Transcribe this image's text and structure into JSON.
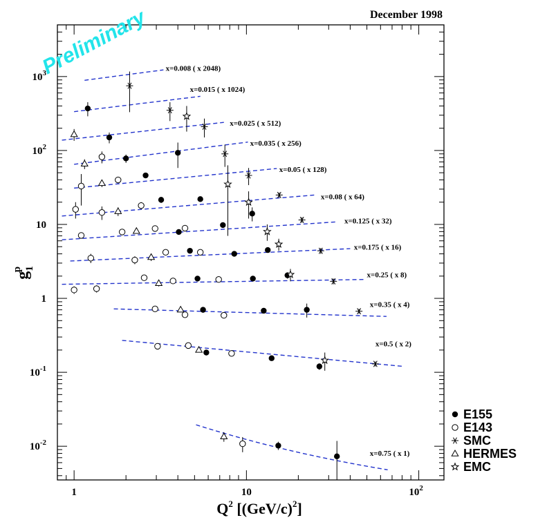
{
  "chart_data": {
    "type": "scatter",
    "title": "December 1998",
    "watermark": "Preliminary",
    "xlabel": "Q",
    "xlabel_sup": "2",
    "xlabel_unit": " [(GeV/c)",
    "xlabel_unit_sup": "2",
    "xlabel_close": "]",
    "ylabel": "g",
    "ylabel_sub": "1",
    "ylabel_sup": "p",
    "xscale": "log",
    "yscale": "log",
    "xlim": [
      0.8,
      140
    ],
    "ylim": [
      0.0035,
      5000
    ],
    "grid": false,
    "legend_position": "bottom-right",
    "x_ticks": [
      {
        "value": 1,
        "label": "1",
        "sup": ""
      },
      {
        "value": 10,
        "label": "10",
        "sup": ""
      },
      {
        "value": 100,
        "label": "10",
        "sup": "2"
      }
    ],
    "y_ticks": [
      {
        "value": 0.01,
        "label": "10",
        "sup": "-2"
      },
      {
        "value": 0.1,
        "label": "10",
        "sup": "-1"
      },
      {
        "value": 1,
        "label": "1",
        "sup": ""
      },
      {
        "value": 10,
        "label": "10",
        "sup": ""
      },
      {
        "value": 100,
        "label": "10",
        "sup": "2"
      },
      {
        "value": 1000,
        "label": "10",
        "sup": "3"
      }
    ],
    "legend": [
      {
        "experiment": "E155",
        "label": "E155"
      },
      {
        "experiment": "E143",
        "label": "E143"
      },
      {
        "experiment": "SMC",
        "label": "SMC"
      },
      {
        "experiment": "HERMES",
        "label": "HERMES"
      },
      {
        "experiment": "EMC",
        "label": "EMC"
      }
    ],
    "bins": [
      {
        "label": "x=0.008 ( x 2048)",
        "label_at": [
          3.4,
          1300
        ],
        "fit": [
          [
            1.15,
            890
          ],
          [
            3.3,
            1230
          ]
        ],
        "points": [
          {
            "experiment": "SMC",
            "x": 2.1,
            "y": 750,
            "err": 420
          }
        ]
      },
      {
        "label": "x=0.015 ( x 1024)",
        "label_at": [
          4.7,
          680
        ],
        "fit": [
          [
            1.0,
            335
          ],
          [
            5.4,
            540
          ]
        ],
        "points": [
          {
            "experiment": "E155",
            "x": 1.2,
            "y": 370,
            "err": 80
          },
          {
            "experiment": "SMC",
            "x": 3.6,
            "y": 350,
            "err": 100
          },
          {
            "experiment": "EMC",
            "x": 4.5,
            "y": 290,
            "err": 110
          }
        ]
      },
      {
        "label": "x=0.025 ( x 512)",
        "label_at": [
          8.0,
          235
        ],
        "fit": [
          [
            0.85,
            138
          ],
          [
            7.4,
            240
          ]
        ],
        "points": [
          {
            "experiment": "HERMES",
            "x": 1.0,
            "y": 165,
            "err": 30
          },
          {
            "experiment": "E155",
            "x": 1.6,
            "y": 150,
            "err": 25
          },
          {
            "experiment": "SMC",
            "x": 5.7,
            "y": 210,
            "err": 60
          }
        ]
      },
      {
        "label": "x=0.035 ( x 256)",
        "label_at": [
          10.5,
          126
        ],
        "fit": [
          [
            1.0,
            65
          ],
          [
            10.2,
            130
          ]
        ],
        "points": [
          {
            "experiment": "HERMES",
            "x": 1.15,
            "y": 66,
            "err": 10
          },
          {
            "experiment": "E143",
            "x": 1.45,
            "y": 82,
            "err": 15
          },
          {
            "experiment": "E155",
            "x": 2.0,
            "y": 78,
            "err": 10
          },
          {
            "experiment": "E155",
            "x": 4.0,
            "y": 93,
            "err": 35
          },
          {
            "experiment": "SMC",
            "x": 7.5,
            "y": 90,
            "err": 30
          }
        ]
      },
      {
        "label": "x=0.05 ( x 128)",
        "label_at": [
          15.5,
          56
        ],
        "fit": [
          [
            1.0,
            31
          ],
          [
            15.0,
            57
          ]
        ],
        "points": [
          {
            "experiment": "E143",
            "x": 1.1,
            "y": 33,
            "err": 15
          },
          {
            "experiment": "HERMES",
            "x": 1.45,
            "y": 36,
            "err": 4
          },
          {
            "experiment": "E143",
            "x": 1.8,
            "y": 40,
            "err": 4
          },
          {
            "experiment": "E155",
            "x": 2.6,
            "y": 46,
            "err": 3
          },
          {
            "experiment": "EMC",
            "x": 7.8,
            "y": 35,
            "err": 28
          },
          {
            "experiment": "SMC",
            "x": 10.3,
            "y": 46,
            "err": 12
          }
        ]
      },
      {
        "label": "x=0.08 ( x 64)",
        "label_at": [
          27.0,
          24
        ],
        "fit": [
          [
            0.85,
            13
          ],
          [
            25.0,
            25
          ]
        ],
        "points": [
          {
            "experiment": "E143",
            "x": 1.02,
            "y": 16,
            "err": 4
          },
          {
            "experiment": "E143",
            "x": 1.45,
            "y": 14.5,
            "err": 3
          },
          {
            "experiment": "HERMES",
            "x": 1.8,
            "y": 15,
            "err": 2
          },
          {
            "experiment": "E143",
            "x": 2.45,
            "y": 18,
            "err": 2
          },
          {
            "experiment": "E155",
            "x": 3.2,
            "y": 21.5,
            "err": 2
          },
          {
            "experiment": "E155",
            "x": 5.4,
            "y": 22,
            "err": 1.5
          },
          {
            "experiment": "EMC",
            "x": 10.3,
            "y": 20,
            "err": 8
          },
          {
            "experiment": "E155",
            "x": 10.8,
            "y": 14,
            "err": 3
          },
          {
            "experiment": "SMC",
            "x": 15.5,
            "y": 25,
            "err": 2
          }
        ]
      },
      {
        "label": "x=0.125 ( x 32)",
        "label_at": [
          37.0,
          11.2
        ],
        "fit": [
          [
            0.85,
            6.2
          ],
          [
            33.0,
            10.8
          ]
        ],
        "points": [
          {
            "experiment": "E143",
            "x": 1.1,
            "y": 7.1,
            "err": 0.6
          },
          {
            "experiment": "E143",
            "x": 1.9,
            "y": 7.9,
            "err": 0.6
          },
          {
            "experiment": "HERMES",
            "x": 2.3,
            "y": 8.1,
            "err": 0.6
          },
          {
            "experiment": "E143",
            "x": 2.95,
            "y": 8.8,
            "err": 0.6
          },
          {
            "experiment": "E155",
            "x": 4.05,
            "y": 7.9,
            "err": 0.6
          },
          {
            "experiment": "E143",
            "x": 4.4,
            "y": 8.9,
            "err": 0.6
          },
          {
            "experiment": "E155",
            "x": 7.3,
            "y": 9.8,
            "err": 0.6
          },
          {
            "experiment": "EMC",
            "x": 13.2,
            "y": 8.0,
            "err": 2.0
          },
          {
            "experiment": "SMC",
            "x": 21.0,
            "y": 11.5,
            "err": 1.0
          }
        ]
      },
      {
        "label": "x=0.175 ( x 16)",
        "label_at": [
          42.0,
          4.95
        ],
        "fit": [
          [
            0.95,
            3.2
          ],
          [
            40.0,
            4.7
          ]
        ],
        "points": [
          {
            "experiment": "E143",
            "x": 1.25,
            "y": 3.5,
            "err": 0.5
          },
          {
            "experiment": "E143",
            "x": 2.25,
            "y": 3.3,
            "err": 0.4
          },
          {
            "experiment": "HERMES",
            "x": 2.8,
            "y": 3.6,
            "err": 0.4
          },
          {
            "experiment": "E143",
            "x": 3.4,
            "y": 4.2,
            "err": 0.3
          },
          {
            "experiment": "E155",
            "x": 4.7,
            "y": 4.4,
            "err": 0.3
          },
          {
            "experiment": "E143",
            "x": 5.4,
            "y": 4.2,
            "err": 0.3
          },
          {
            "experiment": "E155",
            "x": 8.5,
            "y": 4.0,
            "err": 0.3
          },
          {
            "experiment": "E155",
            "x": 13.3,
            "y": 4.5,
            "err": 0.3
          },
          {
            "experiment": "EMC",
            "x": 15.4,
            "y": 5.4,
            "err": 1.0
          },
          {
            "experiment": "SMC",
            "x": 27.0,
            "y": 4.4,
            "err": 0.4
          }
        ]
      },
      {
        "label": "x=0.25 ( x 8)",
        "label_at": [
          50.0,
          2.1
        ],
        "fit": [
          [
            0.85,
            1.55
          ],
          [
            48.0,
            1.8
          ]
        ],
        "points": [
          {
            "experiment": "E143",
            "x": 1.0,
            "y": 1.3,
            "err": 0.15
          },
          {
            "experiment": "E143",
            "x": 1.35,
            "y": 1.35,
            "err": 0.15
          },
          {
            "experiment": "E143",
            "x": 2.55,
            "y": 1.9,
            "err": 0.15
          },
          {
            "experiment": "HERMES",
            "x": 3.1,
            "y": 1.6,
            "err": 0.15
          },
          {
            "experiment": "E143",
            "x": 3.75,
            "y": 1.72,
            "err": 0.12
          },
          {
            "experiment": "E155",
            "x": 5.2,
            "y": 1.85,
            "err": 0.1
          },
          {
            "experiment": "E143",
            "x": 6.9,
            "y": 1.8,
            "err": 0.1
          },
          {
            "experiment": "E155",
            "x": 10.9,
            "y": 1.85,
            "err": 0.1
          },
          {
            "experiment": "E155",
            "x": 17.3,
            "y": 2.05,
            "err": 0.2
          },
          {
            "experiment": "EMC",
            "x": 18.0,
            "y": 2.1,
            "err": 0.4
          },
          {
            "experiment": "SMC",
            "x": 32.0,
            "y": 1.7,
            "err": 0.15
          }
        ]
      },
      {
        "label": "x=0.35 ( x 4)",
        "label_at": [
          52.0,
          0.83
        ],
        "fit": [
          [
            1.7,
            0.72
          ],
          [
            65.0,
            0.57
          ]
        ],
        "points": [
          {
            "experiment": "E143",
            "x": 2.95,
            "y": 0.72,
            "err": 0.05
          },
          {
            "experiment": "HERMES",
            "x": 4.15,
            "y": 0.7,
            "err": 0.05
          },
          {
            "experiment": "E143",
            "x": 4.4,
            "y": 0.6,
            "err": 0.05
          },
          {
            "experiment": "E155",
            "x": 5.6,
            "y": 0.7,
            "err": 0.06
          },
          {
            "experiment": "E143",
            "x": 7.4,
            "y": 0.59,
            "err": 0.04
          },
          {
            "experiment": "E155",
            "x": 12.6,
            "y": 0.68,
            "err": 0.04
          },
          {
            "experiment": "E155",
            "x": 22.4,
            "y": 0.7,
            "err": 0.15
          },
          {
            "experiment": "SMC",
            "x": 45.0,
            "y": 0.67,
            "err": 0.05
          }
        ]
      },
      {
        "label": "x=0.5 ( x 2)",
        "label_at": [
          56.0,
          0.245
        ],
        "fit": [
          [
            1.9,
            0.27
          ],
          [
            82.0,
            0.12
          ]
        ],
        "points": [
          {
            "experiment": "E143",
            "x": 3.05,
            "y": 0.225,
            "err": 0.015
          },
          {
            "experiment": "E143",
            "x": 4.6,
            "y": 0.23,
            "err": 0.015
          },
          {
            "experiment": "HERMES",
            "x": 5.3,
            "y": 0.2,
            "err": 0.015
          },
          {
            "experiment": "E155",
            "x": 5.85,
            "y": 0.185,
            "err": 0.015
          },
          {
            "experiment": "E143",
            "x": 8.2,
            "y": 0.18,
            "err": 0.015
          },
          {
            "experiment": "E155",
            "x": 14.0,
            "y": 0.155,
            "err": 0.012
          },
          {
            "experiment": "E155",
            "x": 26.5,
            "y": 0.12,
            "err": 0.012
          },
          {
            "experiment": "EMC",
            "x": 28.5,
            "y": 0.145,
            "err": 0.04
          },
          {
            "experiment": "SMC",
            "x": 56.0,
            "y": 0.13,
            "err": 0.01
          }
        ]
      },
      {
        "label": "x=0.75 ( x 1)",
        "label_at": [
          52.0,
          0.0081
        ],
        "fit": [
          [
            5.1,
            0.0195
          ],
          [
            66.0,
            0.0048
          ]
        ],
        "points": [
          {
            "experiment": "HERMES",
            "x": 7.4,
            "y": 0.0135,
            "err": 0.002
          },
          {
            "experiment": "E143",
            "x": 9.5,
            "y": 0.0108,
            "err": 0.0025
          },
          {
            "experiment": "E155",
            "x": 15.3,
            "y": 0.0102,
            "err": 0.0013
          },
          {
            "experiment": "E155",
            "x": 33.5,
            "y": 0.0073,
            "err": 0.0045
          }
        ]
      }
    ]
  }
}
